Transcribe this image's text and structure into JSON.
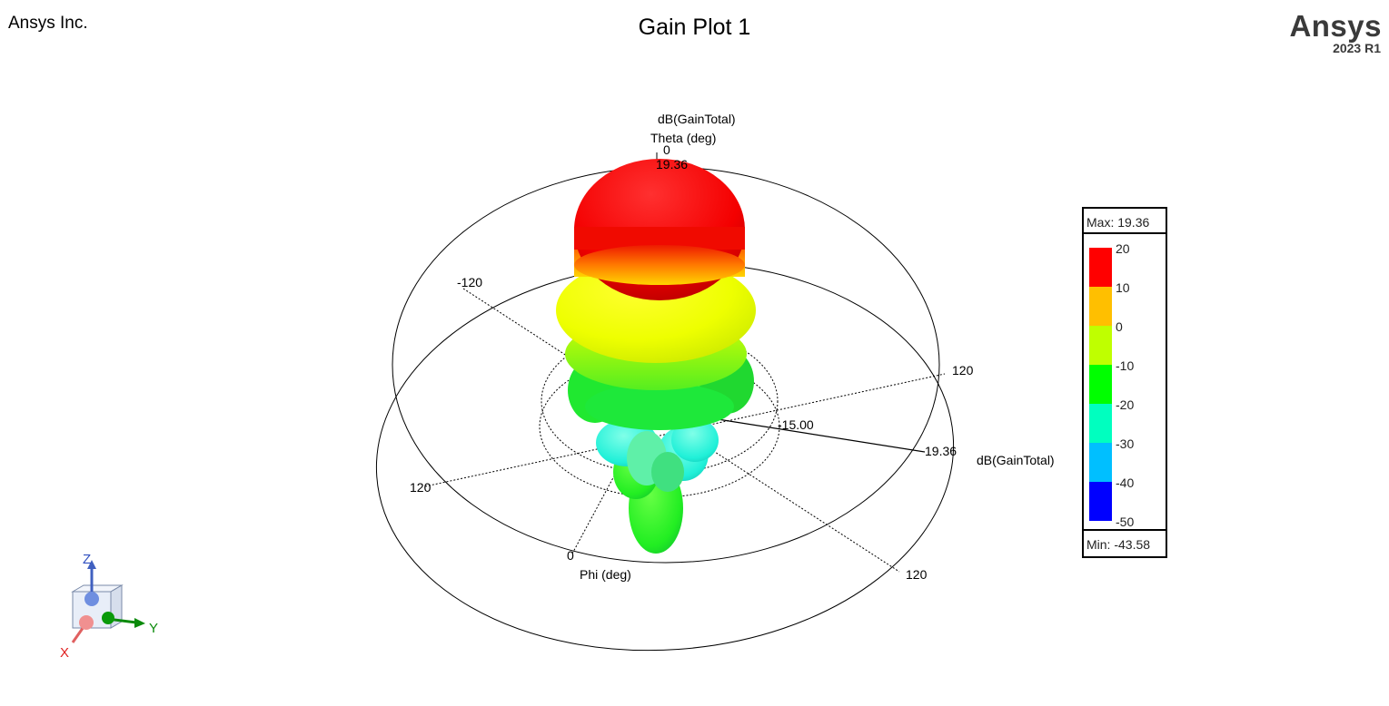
{
  "header": {
    "company": "Ansys Inc.",
    "title": "Gain Plot 1",
    "brand": "Ansys",
    "version": "2023 R1"
  },
  "chart_data": {
    "type": "3d-polar-radiation-pattern",
    "title": "Gain Plot 1",
    "quantity": "dB(GainTotal)",
    "max": 19.36,
    "min": -43.58,
    "labels": {
      "quantity_top": "dB(GainTotal)",
      "theta_axis": "Theta (deg)",
      "theta_zero": "0",
      "theta_max_value": "19.36",
      "phi_axis": "Phi (deg)",
      "phi_ticks": [
        "-120",
        "120",
        "120",
        "0",
        "120"
      ],
      "radial_inner": "-15.00",
      "radial_outer": "19.36",
      "radial_quantity": "dB(GainTotal)"
    },
    "legend": {
      "max_label": "Max: 19.36",
      "min_label": "Min: -43.58",
      "ticks": [
        "20",
        "10",
        "0",
        "-10",
        "-20",
        "-30",
        "-40",
        "-50"
      ],
      "colors": [
        "#ff0000",
        "#ffbf00",
        "#bfff00",
        "#00ff00",
        "#00ffbf",
        "#00bfff",
        "#0000ff"
      ]
    }
  },
  "triad": {
    "x": "X",
    "y": "Y",
    "z": "Z"
  }
}
